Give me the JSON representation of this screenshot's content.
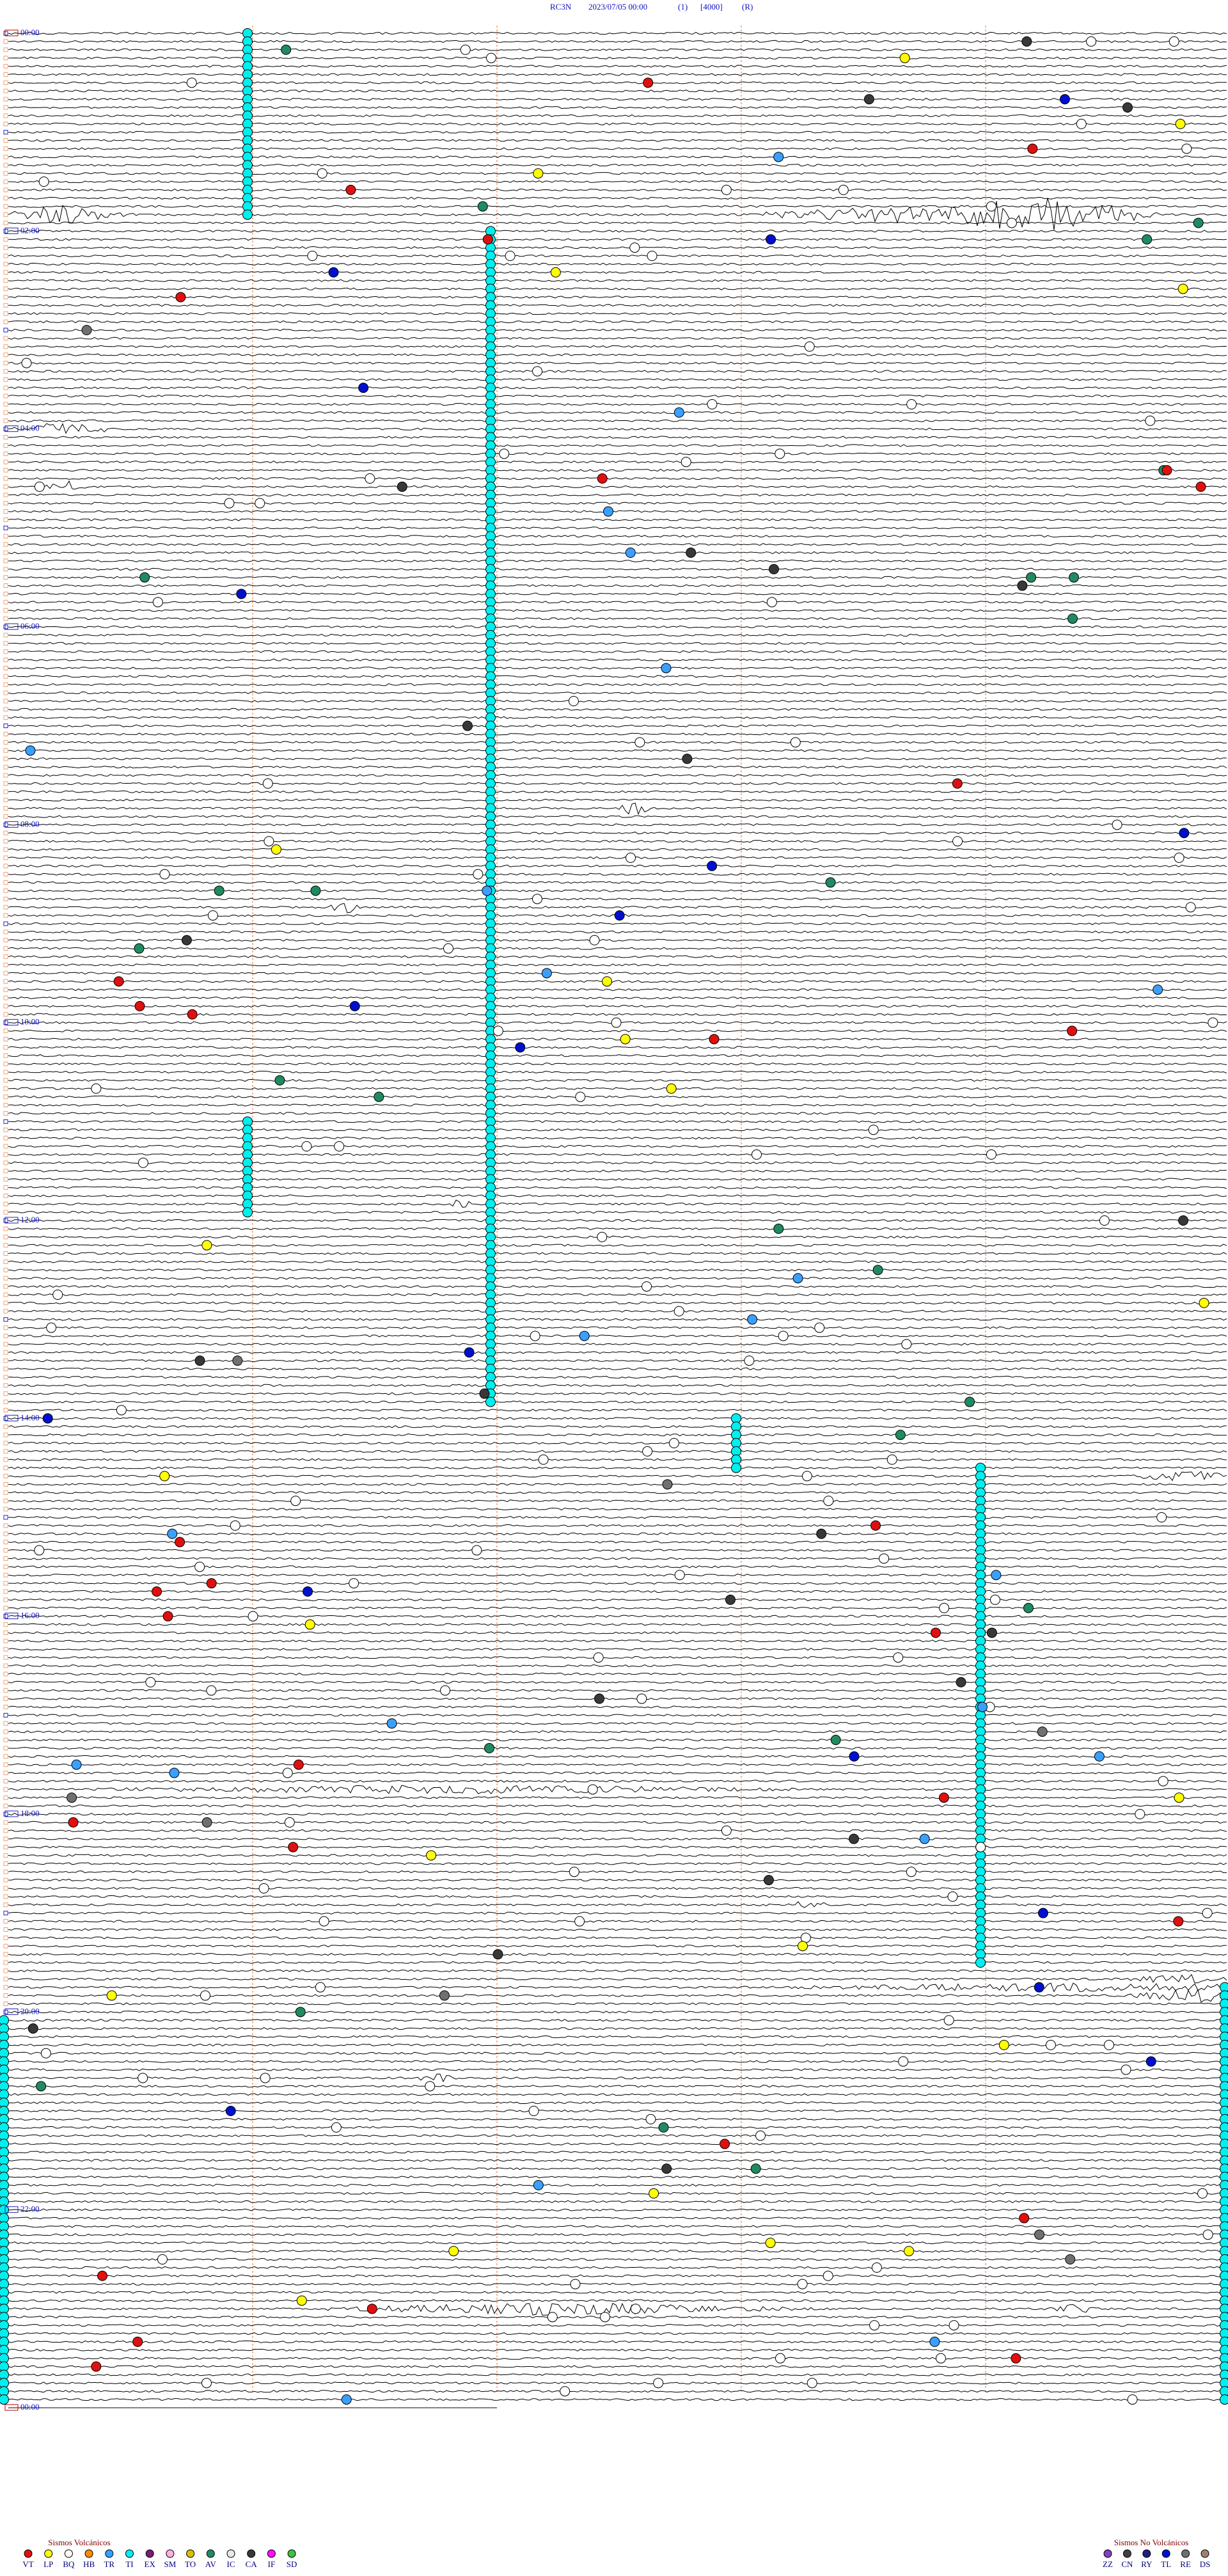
{
  "header": {
    "station": "RC3N",
    "datetime": "2023/07/05 00:00",
    "channel": "(1)",
    "scale": "[4000]",
    "mode": "(R)"
  },
  "hour_labels": [
    "00:00",
    "02:00",
    "04:00",
    "06:00",
    "08:00",
    "10:00",
    "12:00",
    "14:00",
    "16:00",
    "18:00",
    "20:00",
    "22:00",
    "00:00"
  ],
  "legend": {
    "volcanic": {
      "title": "Sismos Volcánicos",
      "items": [
        {
          "code": "VT",
          "color": "#e01010"
        },
        {
          "code": "LP",
          "color": "#ffff00"
        },
        {
          "code": "BQ",
          "color": "#fffff0"
        },
        {
          "code": "HB",
          "color": "#ff8c00"
        },
        {
          "code": "TR",
          "color": "#3aa0ff"
        },
        {
          "code": "TI",
          "color": "#00f0f0"
        },
        {
          "code": "EX",
          "color": "#7a1a7a"
        },
        {
          "code": "SM",
          "color": "#ffb0e0"
        },
        {
          "code": "TO",
          "color": "#d8c000"
        },
        {
          "code": "AV",
          "color": "#208a60"
        },
        {
          "code": "IC",
          "color": "#e8e8e8"
        },
        {
          "code": "CA",
          "color": "#383838"
        },
        {
          "code": "IF",
          "color": "#ff10ff"
        },
        {
          "code": "SD",
          "color": "#40c040"
        }
      ]
    },
    "non_volcanic": {
      "title": "Sismos No Volcánicos",
      "items": [
        {
          "code": "ZZ",
          "color": "#8040c0"
        },
        {
          "code": "CN",
          "color": "#404040"
        },
        {
          "code": "RY",
          "color": "#202080"
        },
        {
          "code": "TL",
          "color": "#0010d0"
        },
        {
          "code": "RE",
          "color": "#707070"
        },
        {
          "code": "DS",
          "color": "#a08070"
        }
      ]
    }
  }
}
